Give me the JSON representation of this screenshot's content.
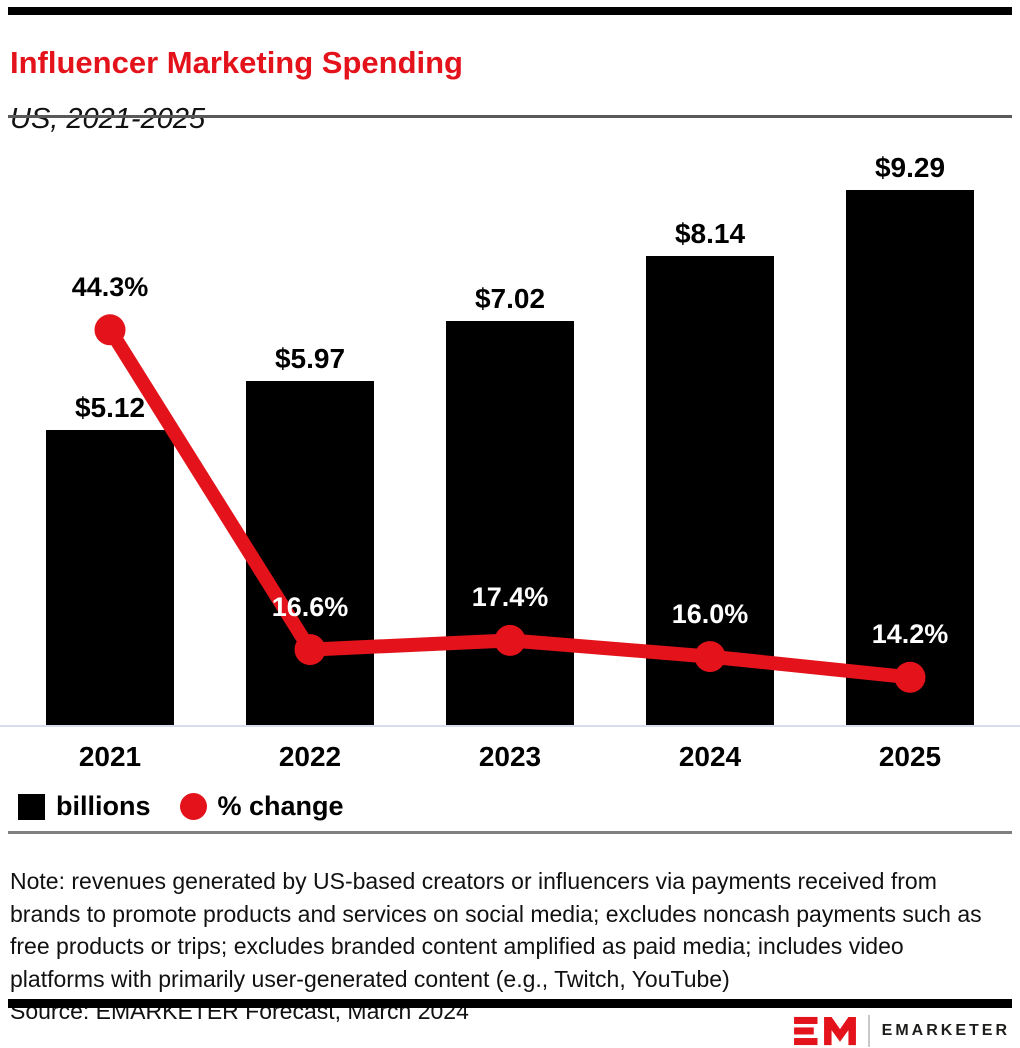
{
  "header": {
    "title": "Influencer Marketing Spending",
    "subtitle": "US, 2021-2025"
  },
  "chart_data": {
    "type": "bar",
    "subtype": "bar-and-line-combo",
    "categories": [
      "2021",
      "2022",
      "2023",
      "2024",
      "2025"
    ],
    "series": [
      {
        "name": "billions",
        "type": "bar",
        "values": [
          5.12,
          5.97,
          7.02,
          8.14,
          9.29
        ],
        "labels": [
          "$5.12",
          "$5.97",
          "$7.02",
          "$8.14",
          "$9.29"
        ],
        "color": "#000000",
        "label_color": "#000000"
      },
      {
        "name": "% change",
        "type": "line",
        "values": [
          44.3,
          16.6,
          17.4,
          16.0,
          14.2
        ],
        "labels": [
          "44.3%",
          "16.6%",
          "17.4%",
          "16.0%",
          "14.2%"
        ],
        "color": "#e4131b",
        "label_colors": [
          "#000000",
          "#ffffff",
          "#ffffff",
          "#ffffff",
          "#ffffff"
        ]
      }
    ],
    "title": "Influencer Marketing Spending",
    "xlabel": "",
    "ylabel": "",
    "bar_ylim": [
      0,
      10.37
    ],
    "line_ylim": [
      9.9,
      61.6
    ],
    "grid": false,
    "legend_position": "bottom-left"
  },
  "legend": {
    "items": [
      {
        "label": "billions",
        "swatch": "square",
        "color": "#000000"
      },
      {
        "label": "% change",
        "swatch": "circle",
        "color": "#e4131b"
      }
    ]
  },
  "footnote": {
    "note_lines": [
      "Note: revenues generated by US-based creators or influencers via payments received from",
      "brands to promote products and services on social media; excludes noncash payments such as",
      "free products or trips; excludes branded content amplified as paid media; includes video",
      "platforms with primarily user-generated content (e.g., Twitch, YouTube)"
    ],
    "source": "Source: EMARKETER Forecast, March 2024"
  },
  "footer": {
    "brand": "EMARKETER",
    "logo": "em-monogram-icon"
  },
  "colors": {
    "accent": "#e4131b",
    "bar": "#000000",
    "baseline": "#d7dcef",
    "legend_rule": "#808080",
    "title_rule": "#58595b"
  }
}
